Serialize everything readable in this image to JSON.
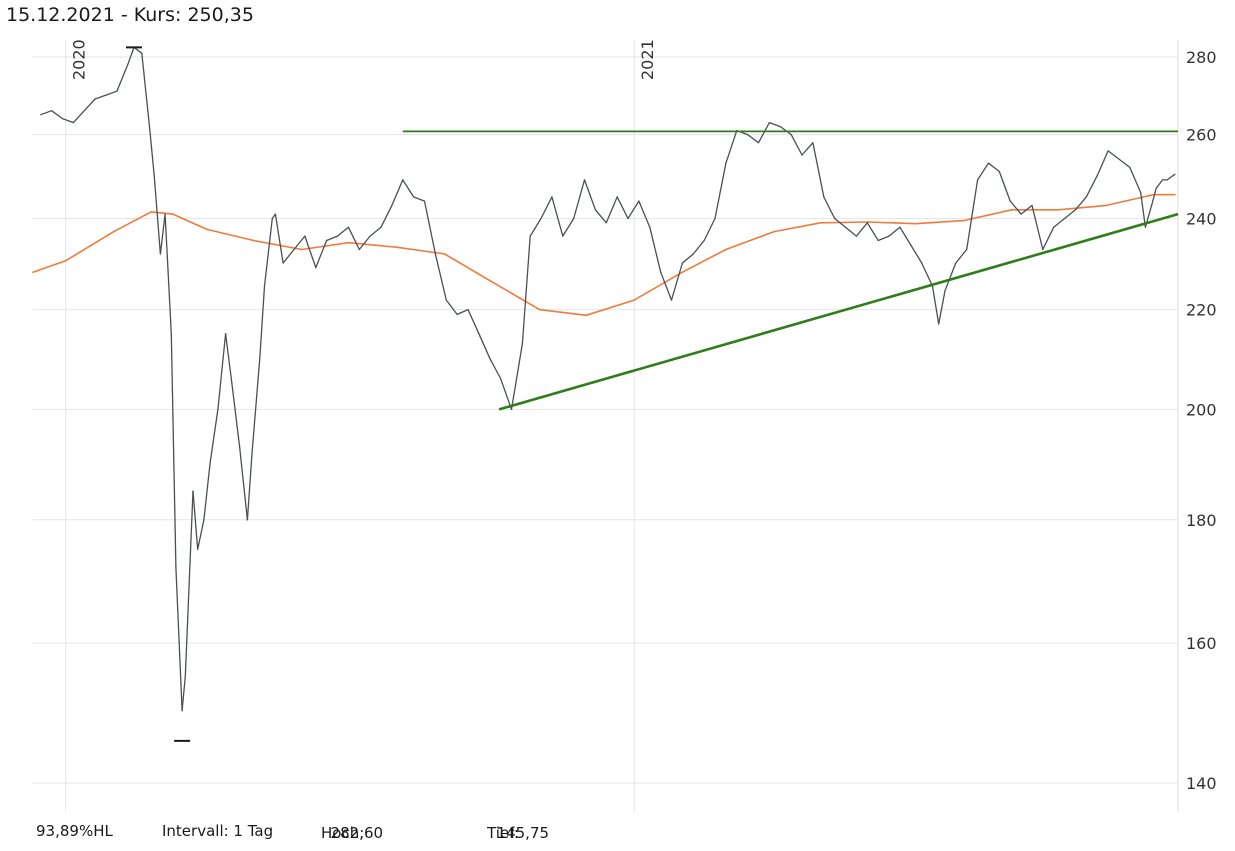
{
  "header": {
    "date": "15.12.2021",
    "separator": " - ",
    "kurs_label": "Kurs:",
    "kurs_value": "250,35"
  },
  "footer": {
    "hl": "93,89%HL",
    "interval": "Intervall: 1 Tag",
    "high_label": "Hoch:",
    "high_value": "282,60",
    "low_label": "Tief:",
    "low_value": "145,75"
  },
  "colors": {
    "price": "#4a4f57",
    "average": "#f07a3c",
    "trendline": "#2e7d1a",
    "grid": "#e6e6e6",
    "marker": "#1a1a1a"
  },
  "chart_data": {
    "type": "line",
    "x_start": "2019-12-16",
    "x_end": "2021-12-15",
    "xlim": [
      "2019-12-11",
      "2021-12-17"
    ],
    "year_labels": [
      {
        "label": "2020",
        "date": "2020-01-01"
      },
      {
        "label": "2021",
        "date": "2021-01-01"
      }
    ],
    "y_ticks": [
      140,
      160,
      180,
      200,
      220,
      240,
      260,
      280
    ],
    "ylim": [
      137,
      283
    ],
    "y_scale": "log",
    "grid": true,
    "markers": {
      "high": {
        "date": "2020-02-14",
        "value": 282.6
      },
      "low": {
        "date": "2020-03-16",
        "value": 145.75
      }
    },
    "series": [
      {
        "role": "price",
        "points": [
          [
            "2019-12-16",
            265
          ],
          [
            "2019-12-23",
            266
          ],
          [
            "2019-12-30",
            264
          ],
          [
            "2020-01-06",
            263
          ],
          [
            "2020-01-13",
            266
          ],
          [
            "2020-01-20",
            269
          ],
          [
            "2020-01-27",
            270
          ],
          [
            "2020-02-03",
            271
          ],
          [
            "2020-02-10",
            278
          ],
          [
            "2020-02-14",
            282.6
          ],
          [
            "2020-02-19",
            281
          ],
          [
            "2020-02-24",
            262
          ],
          [
            "2020-02-27",
            250
          ],
          [
            "2020-03-02",
            232
          ],
          [
            "2020-03-05",
            241
          ],
          [
            "2020-03-09",
            215
          ],
          [
            "2020-03-12",
            172
          ],
          [
            "2020-03-16",
            150
          ],
          [
            "2020-03-18",
            155
          ],
          [
            "2020-03-23",
            185
          ],
          [
            "2020-03-26",
            175
          ],
          [
            "2020-03-30",
            180
          ],
          [
            "2020-04-03",
            190
          ],
          [
            "2020-04-08",
            200
          ],
          [
            "2020-04-13",
            215
          ],
          [
            "2020-04-17",
            205
          ],
          [
            "2020-04-22",
            193
          ],
          [
            "2020-04-27",
            180
          ],
          [
            "2020-04-30",
            192
          ],
          [
            "2020-05-05",
            210
          ],
          [
            "2020-05-08",
            225
          ],
          [
            "2020-05-13",
            240
          ],
          [
            "2020-05-15",
            241
          ],
          [
            "2020-05-20",
            230
          ],
          [
            "2020-05-27",
            233
          ],
          [
            "2020-06-03",
            236
          ],
          [
            "2020-06-10",
            229
          ],
          [
            "2020-06-17",
            235
          ],
          [
            "2020-06-24",
            236
          ],
          [
            "2020-07-01",
            238
          ],
          [
            "2020-07-08",
            233
          ],
          [
            "2020-07-15",
            236
          ],
          [
            "2020-07-22",
            238
          ],
          [
            "2020-07-29",
            243
          ],
          [
            "2020-08-05",
            249
          ],
          [
            "2020-08-12",
            245
          ],
          [
            "2020-08-19",
            244
          ],
          [
            "2020-08-26",
            232
          ],
          [
            "2020-09-02",
            222
          ],
          [
            "2020-09-09",
            219
          ],
          [
            "2020-09-16",
            220
          ],
          [
            "2020-09-23",
            215
          ],
          [
            "2020-09-30",
            210
          ],
          [
            "2020-10-07",
            206
          ],
          [
            "2020-10-14",
            200
          ],
          [
            "2020-10-21",
            213
          ],
          [
            "2020-10-26",
            236
          ],
          [
            "2020-11-02",
            240
          ],
          [
            "2020-11-09",
            245
          ],
          [
            "2020-11-16",
            236
          ],
          [
            "2020-11-23",
            240
          ],
          [
            "2020-11-30",
            249
          ],
          [
            "2020-12-07",
            242
          ],
          [
            "2020-12-14",
            239
          ],
          [
            "2020-12-21",
            245
          ],
          [
            "2020-12-28",
            240
          ],
          [
            "2021-01-04",
            244
          ],
          [
            "2021-01-11",
            238
          ],
          [
            "2021-01-18",
            228
          ],
          [
            "2021-01-25",
            222
          ],
          [
            "2021-02-01",
            230
          ],
          [
            "2021-02-08",
            232
          ],
          [
            "2021-02-15",
            235
          ],
          [
            "2021-02-22",
            240
          ],
          [
            "2021-03-01",
            253
          ],
          [
            "2021-03-08",
            261
          ],
          [
            "2021-03-15",
            260
          ],
          [
            "2021-03-22",
            258
          ],
          [
            "2021-03-29",
            263
          ],
          [
            "2021-04-05",
            262
          ],
          [
            "2021-04-12",
            260
          ],
          [
            "2021-04-19",
            255
          ],
          [
            "2021-04-26",
            258
          ],
          [
            "2021-05-03",
            245
          ],
          [
            "2021-05-10",
            240
          ],
          [
            "2021-05-17",
            238
          ],
          [
            "2021-05-24",
            236
          ],
          [
            "2021-05-31",
            239
          ],
          [
            "2021-06-07",
            235
          ],
          [
            "2021-06-14",
            236
          ],
          [
            "2021-06-21",
            238
          ],
          [
            "2021-06-28",
            234
          ],
          [
            "2021-07-05",
            230
          ],
          [
            "2021-07-12",
            225
          ],
          [
            "2021-07-16",
            217
          ],
          [
            "2021-07-20",
            224
          ],
          [
            "2021-07-27",
            230
          ],
          [
            "2021-08-03",
            233
          ],
          [
            "2021-08-10",
            249
          ],
          [
            "2021-08-17",
            253
          ],
          [
            "2021-08-24",
            251
          ],
          [
            "2021-08-31",
            244
          ],
          [
            "2021-09-07",
            241
          ],
          [
            "2021-09-14",
            243
          ],
          [
            "2021-09-21",
            233
          ],
          [
            "2021-09-28",
            238
          ],
          [
            "2021-10-05",
            240
          ],
          [
            "2021-10-12",
            242
          ],
          [
            "2021-10-19",
            245
          ],
          [
            "2021-10-26",
            250
          ],
          [
            "2021-11-02",
            256
          ],
          [
            "2021-11-09",
            254
          ],
          [
            "2021-11-16",
            252
          ],
          [
            "2021-11-23",
            246
          ],
          [
            "2021-11-26",
            238
          ],
          [
            "2021-11-30",
            243
          ],
          [
            "2021-12-03",
            247
          ],
          [
            "2021-12-07",
            249
          ],
          [
            "2021-12-10",
            249
          ],
          [
            "2021-12-15",
            250.35
          ]
        ]
      },
      {
        "role": "average",
        "points": [
          [
            "2019-12-11",
            228
          ],
          [
            "2020-01-01",
            230.5
          ],
          [
            "2020-02-01",
            237
          ],
          [
            "2020-02-25",
            241.5
          ],
          [
            "2020-03-10",
            241
          ],
          [
            "2020-04-01",
            237.5
          ],
          [
            "2020-05-01",
            235
          ],
          [
            "2020-06-01",
            233
          ],
          [
            "2020-07-01",
            234.5
          ],
          [
            "2020-08-01",
            233.5
          ],
          [
            "2020-09-01",
            232
          ],
          [
            "2020-10-01",
            226
          ],
          [
            "2020-11-01",
            220
          ],
          [
            "2020-12-01",
            218.8
          ],
          [
            "2021-01-01",
            222
          ],
          [
            "2021-02-01",
            228
          ],
          [
            "2021-03-01",
            233
          ],
          [
            "2021-04-01",
            237
          ],
          [
            "2021-05-01",
            239
          ],
          [
            "2021-06-01",
            239.2
          ],
          [
            "2021-07-01",
            238.8
          ],
          [
            "2021-08-01",
            239.5
          ],
          [
            "2021-09-01",
            242
          ],
          [
            "2021-10-01",
            242
          ],
          [
            "2021-11-01",
            243
          ],
          [
            "2021-12-01",
            245.5
          ],
          [
            "2021-12-15",
            245.5
          ]
        ]
      }
    ],
    "trendlines": [
      {
        "from": [
          "2020-08-05",
          260.8
        ],
        "to": [
          "2021-12-17",
          260.8
        ]
      },
      {
        "from": [
          "2020-10-06",
          200
        ],
        "to": [
          "2021-12-17",
          241
        ]
      }
    ]
  }
}
